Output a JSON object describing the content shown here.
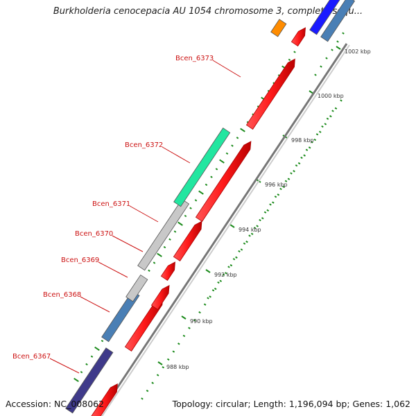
{
  "title": "Burkholderia cenocepacia AU 1054 chromosome 3, complete sequ...",
  "footer": {
    "accession": "Accession: NC_008062",
    "summary": "Topology: circular; Length: 1,196,094 bp; Genes: 1,062"
  },
  "colors": {
    "forward_gene": "#ff1a1a",
    "backbone": "#999999",
    "tick_dot": "#1a8a1a",
    "label": "#cc1111",
    "teal_feature": "#22e6a0",
    "grey_feature": "#c8c8c8",
    "steelblue_feature": "#4a7fb5",
    "navy_feature": "#3f3a8a",
    "orange_feature": "#ff8c00",
    "blue_feature": "#1a1aff"
  },
  "gene_labels": [
    "Bcen_6373",
    "Bcen_6372",
    "Bcen_6371",
    "Bcen_6370",
    "Bcen_6369",
    "Bcen_6368",
    "Bcen_6367"
  ],
  "scale_labels": [
    "1002 kbp",
    "1000 kbp",
    "998 kbp",
    "996 kbp",
    "994 kbp",
    "992 kbp",
    "990 kbp",
    "988 kbp"
  ]
}
